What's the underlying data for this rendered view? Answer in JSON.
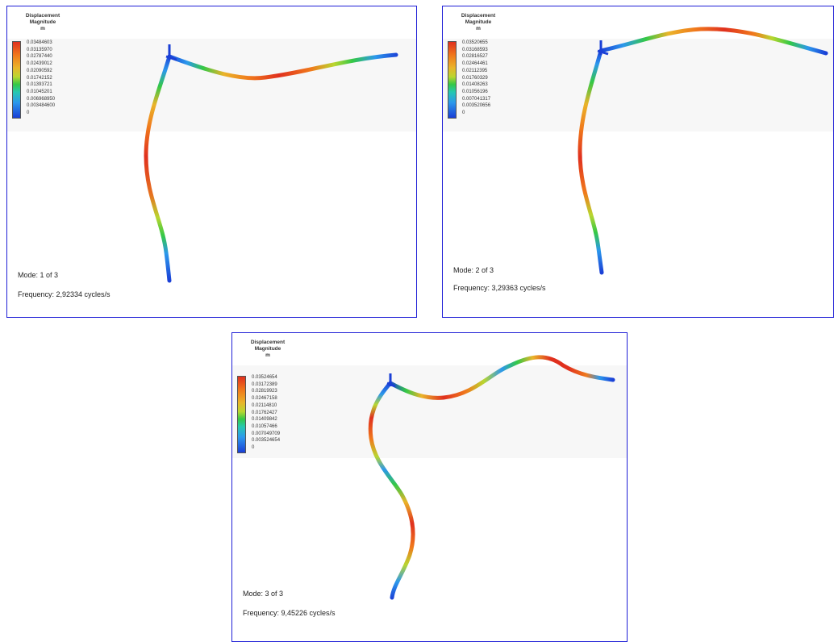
{
  "panels": [
    {
      "legend": {
        "title_line1": "Displacement",
        "title_line2": "Magnitude",
        "unit": "m",
        "ticks": [
          "0.03484603",
          "0.03135970",
          "0.02787440",
          "0.02439012",
          "0.02090592",
          "0.01742152",
          "0.01393721",
          "0.01045201",
          "0.006968950",
          "0.003484600",
          "0"
        ]
      },
      "mode_text": "Mode:  1 of 3",
      "frequency_text": "Frequency: 2,92334 cycles/s"
    },
    {
      "legend": {
        "title_line1": "Displacement",
        "title_line2": "Magnitude",
        "unit": "m",
        "ticks": [
          "0.03520655",
          "0.03168593",
          "0.02816527",
          "0.02464461",
          "0.02112395",
          "0.01760329",
          "0.01408263",
          "0.01056196",
          "0.007041317",
          "0.003520656",
          "0"
        ]
      },
      "mode_text": "Mode:  2 of 3",
      "frequency_text": "Frequency: 3,29363 cycles/s"
    },
    {
      "legend": {
        "title_line1": "Displacement",
        "title_line2": "Magnitude",
        "unit": "m",
        "ticks": [
          "0.03524654",
          "0.03172389",
          "0.02819923",
          "0.02467158",
          "0.02114810",
          "0.01762427",
          "0.01409842",
          "0.01057466",
          "0.007049709",
          "0.003524654",
          "0"
        ]
      },
      "mode_text": "Mode:  3 of 3",
      "frequency_text": "Frequency: 9,45226 cycles/s"
    }
  ],
  "colors": {
    "frame": "#1f1fd6",
    "max": "#e0301e",
    "min": "#1a3fd6"
  }
}
